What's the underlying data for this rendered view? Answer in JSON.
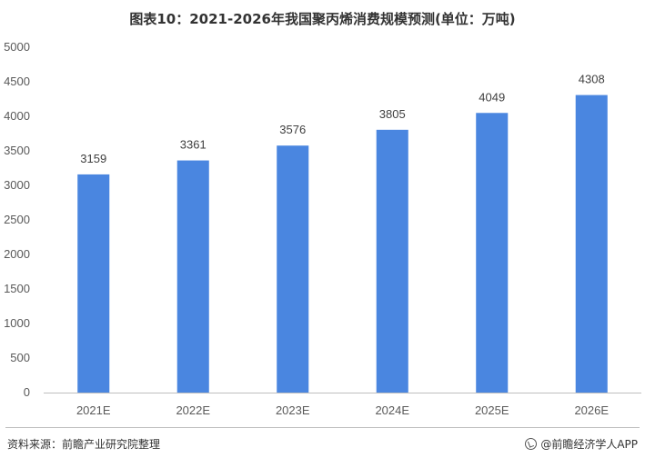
{
  "title": "图表10：2021-2026年我国聚丙烯消费规模预测(单位：万吨)",
  "footer": {
    "source": "资料来源：前瞻产业研究院整理",
    "brand": "@前瞻经济学人APP",
    "brand_icon": "qianzhan-logo-icon"
  },
  "colors": {
    "bar": "#4a86e0",
    "axis": "#bfbfbf"
  },
  "chart_data": {
    "type": "bar",
    "title": "图表10：2021-2026年我国聚丙烯消费规模预测(单位：万吨)",
    "xlabel": "",
    "ylabel": "",
    "categories": [
      "2021E",
      "2022E",
      "2023E",
      "2024E",
      "2025E",
      "2026E"
    ],
    "values": [
      3159,
      3361,
      3576,
      3805,
      4049,
      4308
    ],
    "ylim": [
      0,
      5000
    ],
    "yticks": [
      "0",
      "500",
      "1000",
      "1500",
      "2000",
      "2500",
      "3000",
      "3500",
      "4000",
      "4500",
      "5000"
    ],
    "grid": false,
    "legend": "none",
    "data_labels": true
  }
}
